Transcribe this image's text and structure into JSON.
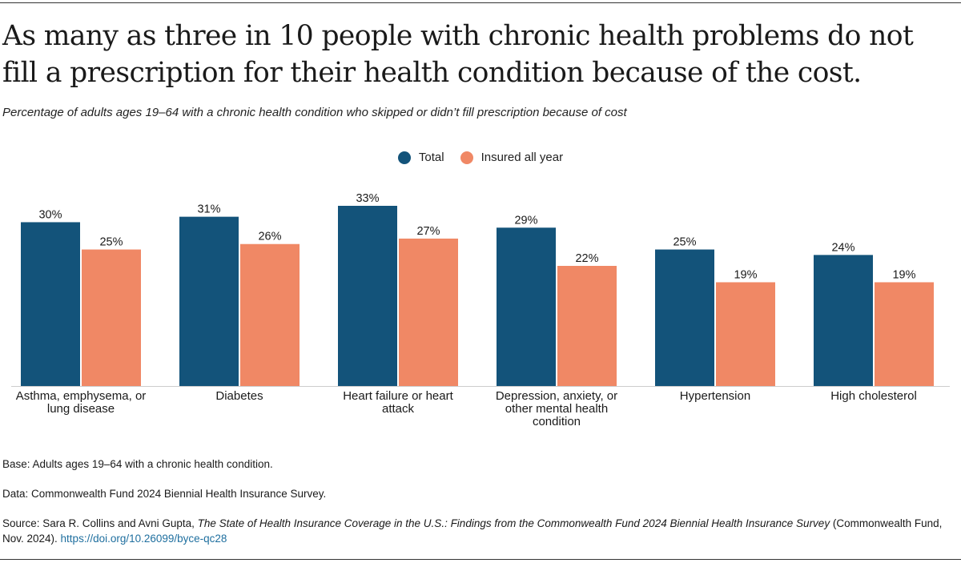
{
  "title": "As many as three in 10 people with chronic health problems do not fill a prescription for their health condition because of the cost.",
  "subtitle": "Percentage of adults ages 19–64 with a chronic health condition who skipped or didn’t fill prescription because of cost",
  "colors": {
    "total": "#13537a",
    "insured": "#f08865",
    "axis": "#cccccc"
  },
  "chart_data": {
    "type": "bar",
    "title": "As many as three in 10 people with chronic health problems do not fill a prescription for their health condition because of the cost.",
    "xlabel": "",
    "ylabel": "",
    "ylim": [
      0,
      33
    ],
    "grid": false,
    "legend": "top-center",
    "value_suffix": "%",
    "categories": [
      [
        "Asthma, emphysema, or",
        "lung disease"
      ],
      [
        "Diabetes"
      ],
      [
        "Heart failure or heart",
        "attack"
      ],
      [
        "Depression, anxiety, or",
        "other mental health",
        "condition"
      ],
      [
        "Hypertension"
      ],
      [
        "High cholesterol"
      ]
    ],
    "series": [
      {
        "name": "Total",
        "values": [
          30,
          31,
          33,
          29,
          25,
          24
        ]
      },
      {
        "name": "Insured all year",
        "values": [
          25,
          26,
          27,
          22,
          19,
          19
        ]
      }
    ]
  },
  "notes": {
    "base": "Base: Adults ages 19–64 with a chronic health condition.",
    "data": "Data: Commonwealth Fund 2024 Biennial Health Insurance Survey.",
    "source_prefix": "Source: Sara R. Collins and Avni Gupta, ",
    "source_title": "The State of Health Insurance Coverage in the U.S.: Findings from the Commonwealth Fund 2024 Biennial Health Insurance Survey",
    "source_suffix": " (Commonwealth Fund, Nov. 2024). ",
    "source_link": "https://doi.org/10.26099/byce-qc28"
  }
}
